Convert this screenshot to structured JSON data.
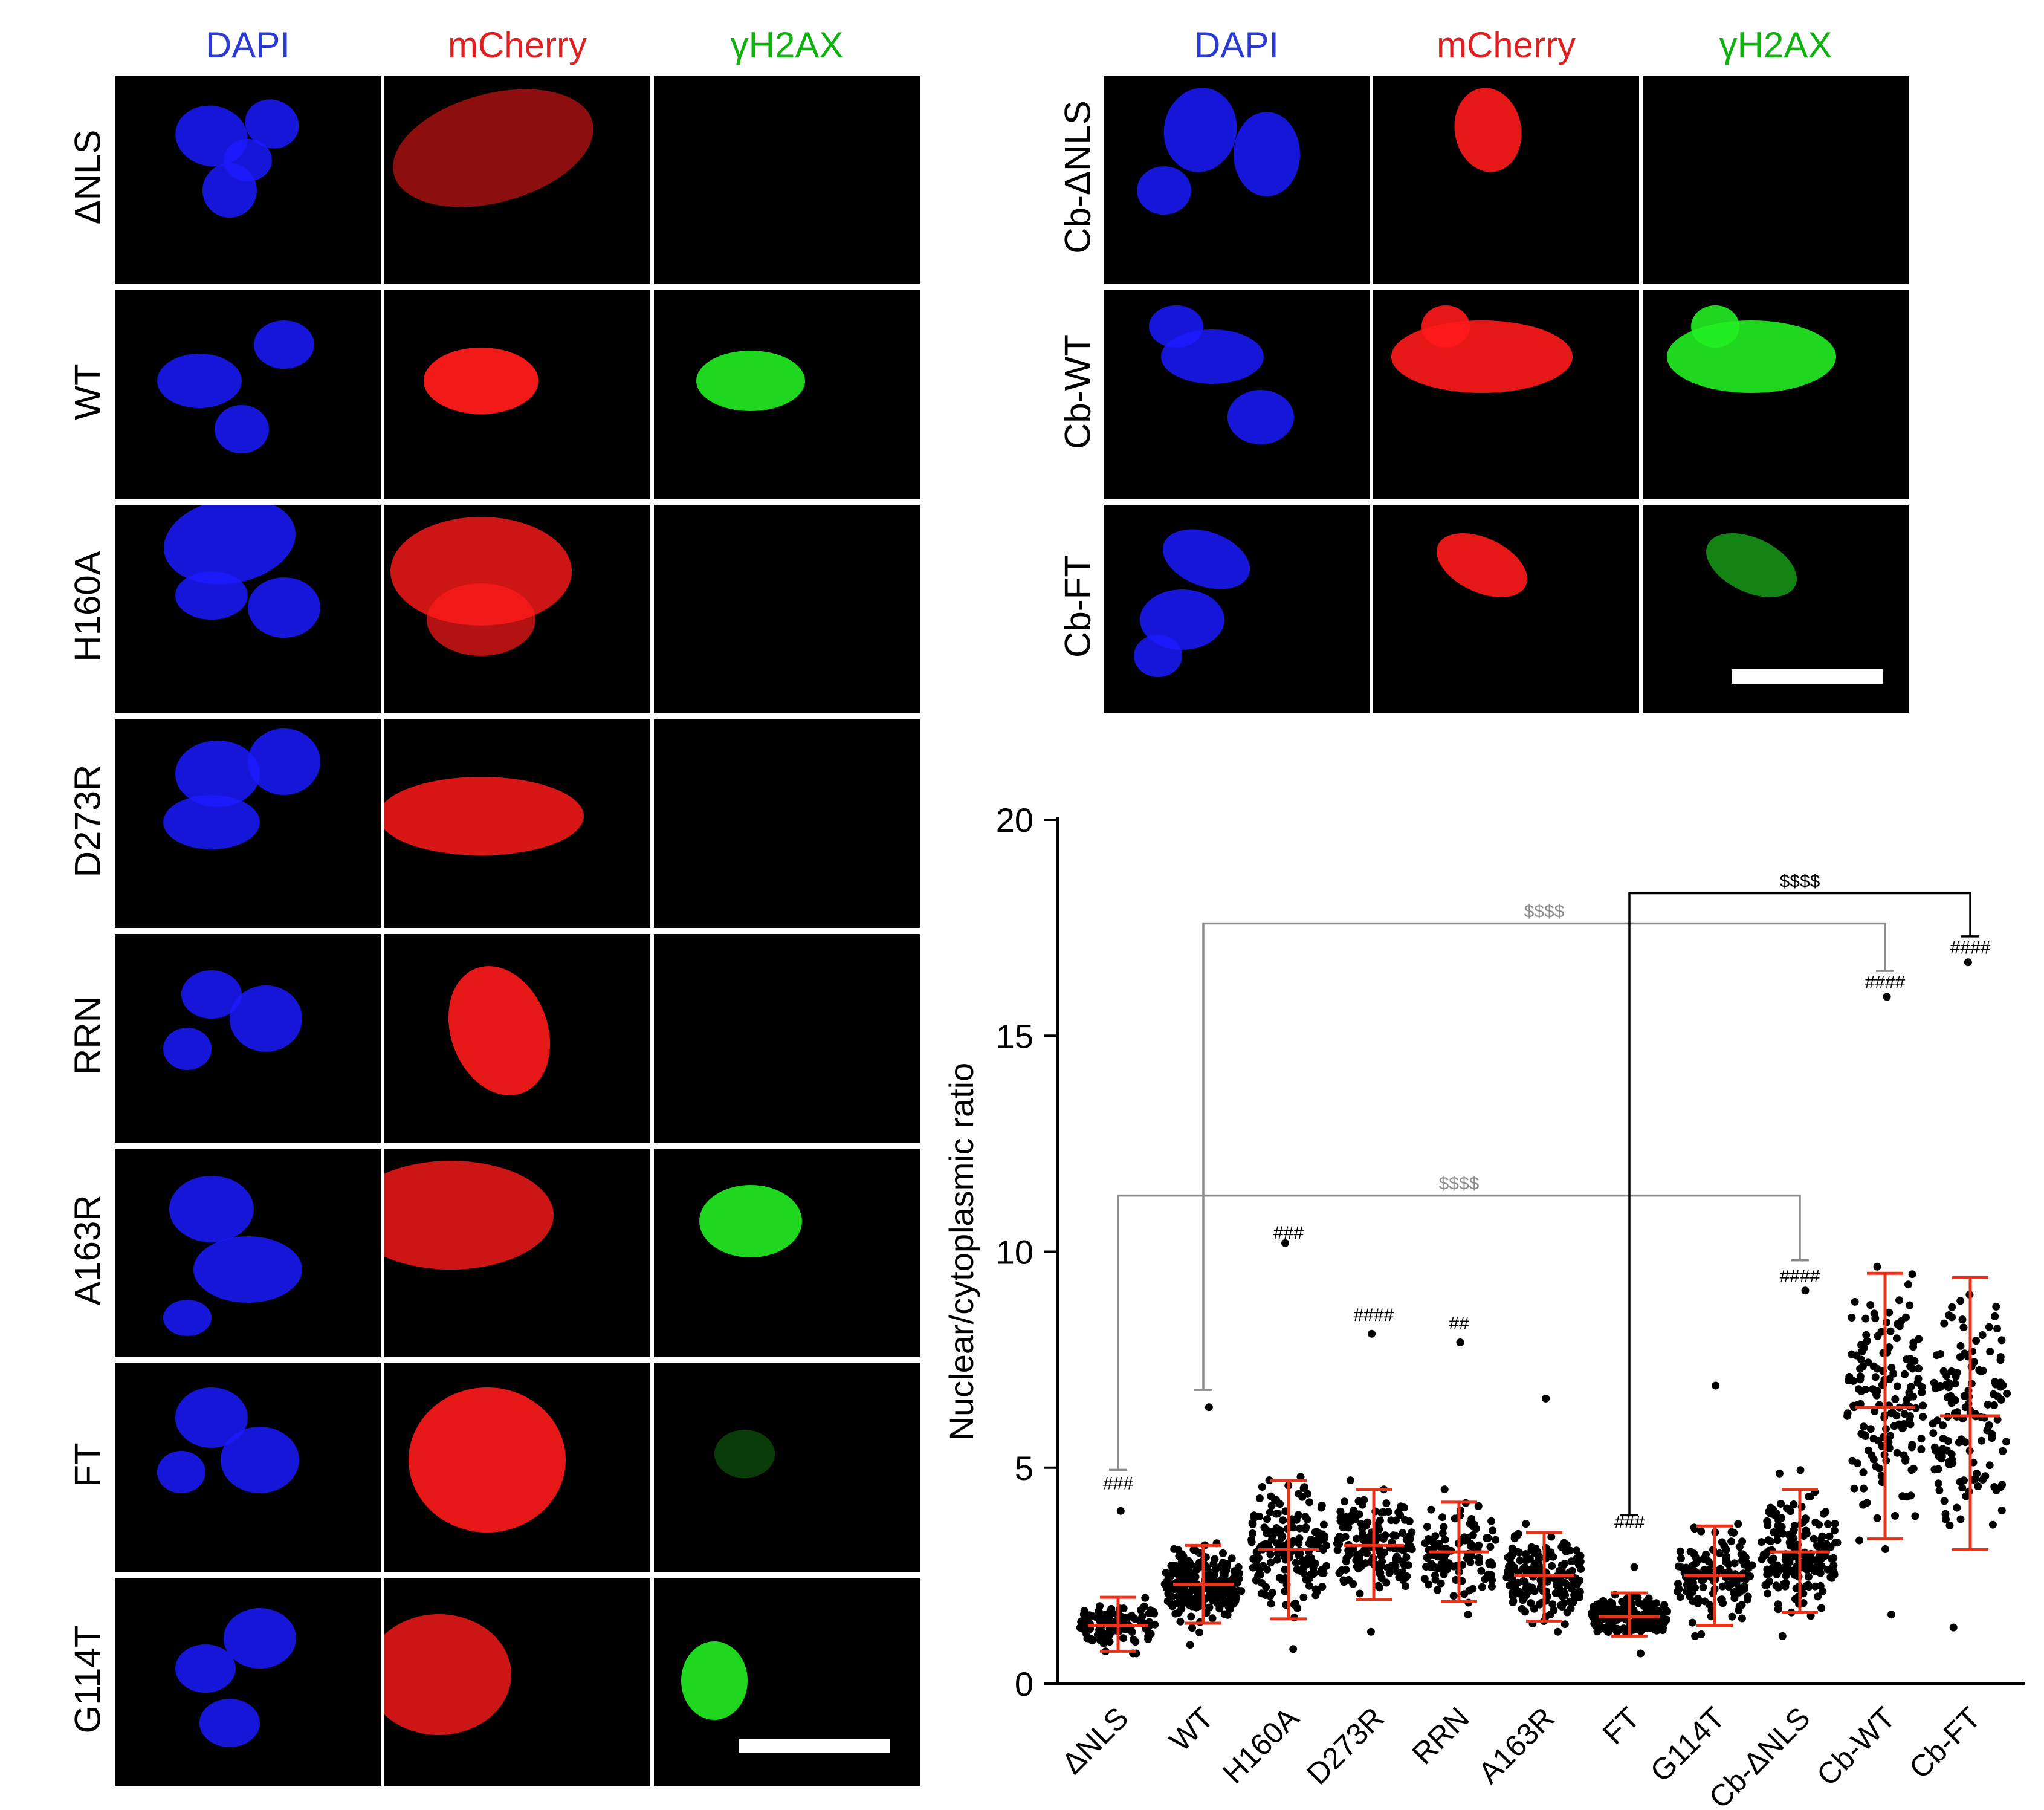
{
  "left_figure": {
    "channels": [
      "DAPI",
      "mCherry",
      "γH2AX"
    ],
    "channel_colors": [
      "#2b3bd1",
      "#e02020",
      "#10b010"
    ],
    "rows": [
      "ΔNLS",
      "WT",
      "H160A",
      "D273R",
      "RRN",
      "A163R",
      "FT",
      "G114T"
    ]
  },
  "right_figure": {
    "channels": [
      "DAPI",
      "mCherry",
      "γH2AX"
    ],
    "channel_colors": [
      "#2b3bd1",
      "#e02020",
      "#10b010"
    ],
    "rows": [
      "Cb-ΔNLS",
      "Cb-WT",
      "Cb-FT"
    ]
  },
  "micrograph_colors": {
    "dapi": "#1a1aff",
    "mcherry": "#ff1a1a",
    "gh2ax": "#22ee22"
  },
  "chart_data": {
    "type": "scatter",
    "subtype": "dot-plot with mean and SD",
    "title": "",
    "xlabel": "",
    "ylabel": "Nuclear/cytoplasmic ratio",
    "ylim": [
      0,
      20
    ],
    "yticks": [
      0,
      5,
      10,
      15,
      20
    ],
    "categories": [
      "ΔNLS",
      "WT",
      "H160A",
      "D273R",
      "RRN",
      "A163R",
      "FT",
      "G114T",
      "Cb-ΔNLS",
      "Cb-WT",
      "Cb-FT"
    ],
    "summary": [
      {
        "group": "ΔNLS",
        "mean": 1.35,
        "sd_low": 0.75,
        "sd_high": 2.0,
        "min": 0.7,
        "max": 4.0,
        "n": 110
      },
      {
        "group": "WT",
        "mean": 2.3,
        "sd_low": 1.4,
        "sd_high": 3.2,
        "min": 0.9,
        "max": 6.4,
        "n": 220
      },
      {
        "group": "H160A",
        "mean": 3.1,
        "sd_low": 1.5,
        "sd_high": 4.7,
        "min": 0.8,
        "max": 10.2,
        "n": 180
      },
      {
        "group": "D273R",
        "mean": 3.2,
        "sd_low": 1.95,
        "sd_high": 4.5,
        "min": 1.2,
        "max": 8.1,
        "n": 170
      },
      {
        "group": "RRN",
        "mean": 3.05,
        "sd_low": 1.9,
        "sd_high": 4.2,
        "min": 1.6,
        "max": 7.9,
        "n": 100
      },
      {
        "group": "A163R",
        "mean": 2.5,
        "sd_low": 1.45,
        "sd_high": 3.5,
        "min": 1.2,
        "max": 6.6,
        "n": 170
      },
      {
        "group": "FT",
        "mean": 1.55,
        "sd_low": 1.1,
        "sd_high": 2.1,
        "min": 0.7,
        "max": 2.7,
        "n": 200
      },
      {
        "group": "G114T",
        "mean": 2.5,
        "sd_low": 1.35,
        "sd_high": 3.65,
        "min": 1.1,
        "max": 6.9,
        "n": 140
      },
      {
        "group": "Cb-ΔNLS",
        "mean": 3.05,
        "sd_low": 1.65,
        "sd_high": 4.5,
        "min": 1.1,
        "max": 9.1,
        "n": 200
      },
      {
        "group": "Cb-WT",
        "mean": 6.4,
        "sd_low": 3.35,
        "sd_high": 9.5,
        "min": 1.6,
        "max": 15.9,
        "n": 160
      },
      {
        "group": "Cb-FT",
        "mean": 6.2,
        "sd_low": 3.1,
        "sd_high": 9.4,
        "min": 1.3,
        "max": 16.7,
        "n": 140
      }
    ],
    "annotations": [
      {
        "group": "ΔNLS",
        "text": "###",
        "y": 4.5
      },
      {
        "group": "H160A",
        "text": "###",
        "y": 10.3
      },
      {
        "group": "D273R",
        "text": "####",
        "y": 8.4
      },
      {
        "group": "RRN",
        "text": "##",
        "y": 8.2
      },
      {
        "group": "FT",
        "text": "###",
        "y": 3.6
      },
      {
        "group": "Cb-ΔNLS",
        "text": "####",
        "y": 9.3
      },
      {
        "group": "Cb-WT",
        "text": "####",
        "y": 16.1
      },
      {
        "group": "Cb-FT",
        "text": "####",
        "y": 16.9
      }
    ],
    "comparisons": [
      {
        "from": "ΔNLS",
        "to": "Cb-ΔNLS",
        "text": "$$$$",
        "y": 11.3,
        "from_cap": 4.95,
        "to_cap": 9.8,
        "color": "#8c8c8c"
      },
      {
        "from": "WT",
        "to": "Cb-WT",
        "text": "$$$$",
        "y": 17.6,
        "from_cap": 6.8,
        "to_cap": 16.5,
        "color": "#8c8c8c"
      },
      {
        "from": "FT",
        "to": "Cb-FT",
        "text": "$$$$",
        "y": 18.3,
        "from_cap": 3.9,
        "to_cap": 17.3,
        "color": "#000000"
      }
    ],
    "colors": {
      "points": "#000000",
      "error_bars": "#e8321a",
      "axis": "#000000"
    }
  }
}
